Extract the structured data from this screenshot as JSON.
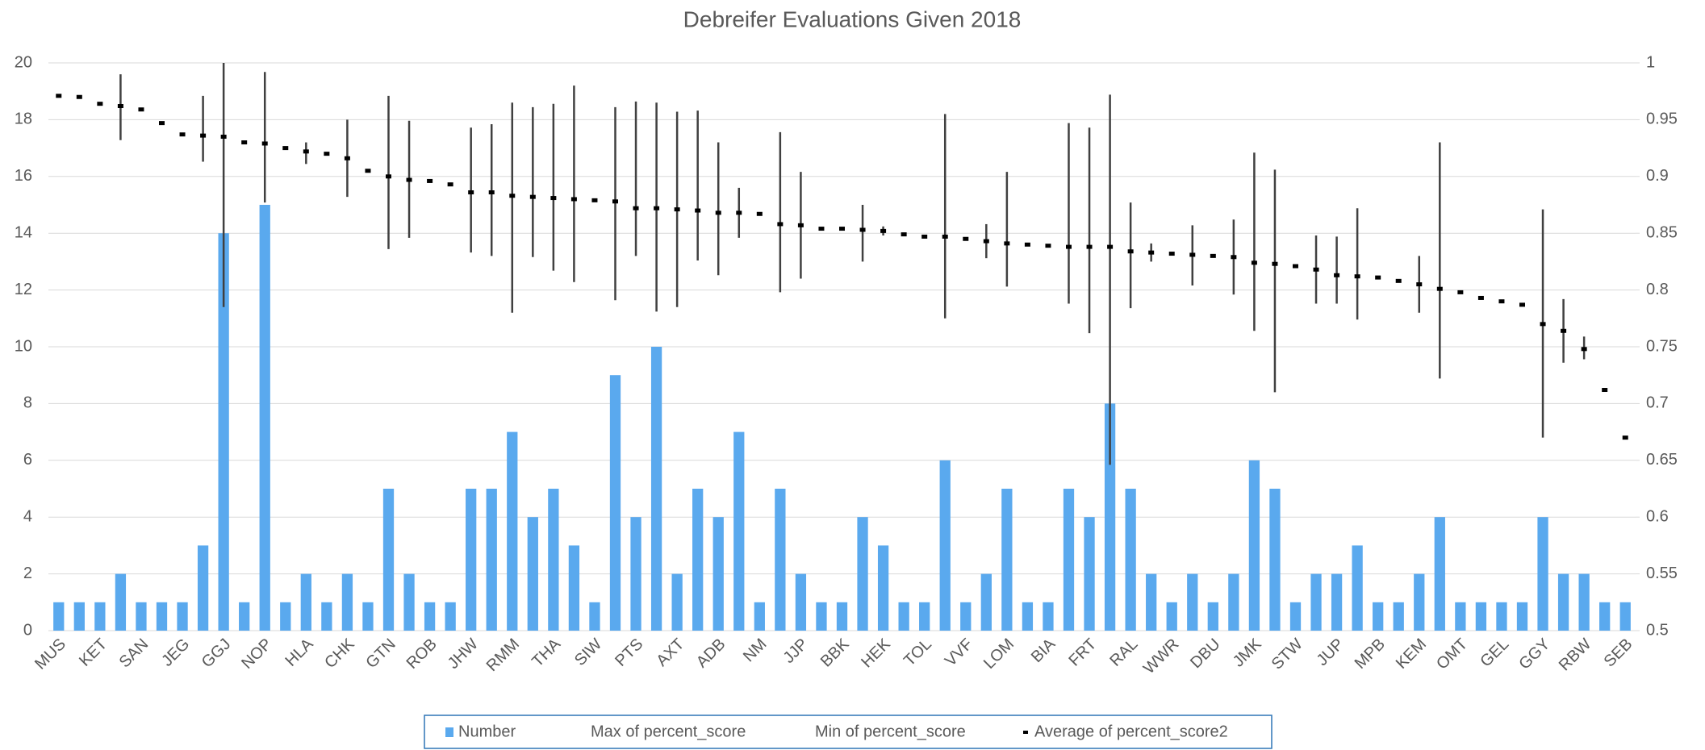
{
  "chart_data": {
    "type": "bar_highlow",
    "title": "Debreifer Evaluations Given 2018",
    "categories": [
      "MUS",
      null,
      "KET",
      null,
      "SAN",
      null,
      "JEG",
      null,
      "GGJ",
      null,
      "NOP",
      null,
      "HLA",
      null,
      "CHK",
      null,
      "GTN",
      null,
      "ROB",
      null,
      "JHW",
      null,
      "RMM",
      null,
      "THA",
      null,
      "SIW",
      null,
      "PTS",
      null,
      "AXT",
      null,
      "ADB",
      null,
      "NM",
      null,
      "JJP",
      null,
      "BBK",
      null,
      "HEK",
      null,
      "TOL",
      null,
      "VVF",
      null,
      "LOM",
      null,
      "BIA",
      null,
      "FRT",
      null,
      "RAL",
      null,
      "WWR",
      null,
      "DBU",
      null,
      "JMK",
      null,
      "STW",
      null,
      "JUP",
      null,
      "MPB",
      null,
      "KEM",
      null,
      "OMT",
      null,
      "GEL",
      null,
      "GGY",
      null,
      "RBW",
      null,
      "SEB"
    ],
    "series": [
      {
        "name": "Number",
        "color": "#5aa9ee",
        "values": [
          1,
          1,
          1,
          2,
          1,
          1,
          1,
          3,
          14,
          1,
          15,
          1,
          2,
          1,
          2,
          1,
          5,
          2,
          1,
          1,
          5,
          5,
          7,
          4,
          5,
          3,
          1,
          9,
          4,
          10,
          2,
          5,
          4,
          7,
          1,
          5,
          2,
          1,
          1,
          4,
          3,
          1,
          1,
          6,
          1,
          2,
          5,
          1,
          1,
          5,
          4,
          8,
          5,
          2,
          1,
          2,
          1,
          2,
          6,
          5,
          1,
          2,
          2,
          3,
          1,
          1,
          2,
          4,
          1,
          1,
          1,
          1,
          4,
          2,
          2,
          1,
          1
        ]
      },
      {
        "name": "Max of percent_score",
        "color": "#404040",
        "axis": "y2",
        "values": [
          null,
          null,
          null,
          0.99,
          null,
          null,
          null,
          0.971,
          1.0,
          null,
          0.992,
          null,
          0.93,
          null,
          0.95,
          null,
          0.971,
          0.949,
          null,
          null,
          0.943,
          0.946,
          0.965,
          0.961,
          0.964,
          0.98,
          null,
          0.961,
          0.966,
          0.965,
          0.957,
          0.958,
          0.93,
          0.89,
          null,
          0.939,
          0.904,
          null,
          null,
          0.875,
          0.856,
          null,
          null,
          0.955,
          null,
          0.858,
          0.904,
          null,
          null,
          0.947,
          0.943,
          0.972,
          0.877,
          0.841,
          null,
          0.857,
          null,
          0.862,
          0.921,
          0.906,
          null,
          0.848,
          0.847,
          0.872,
          null,
          null,
          0.83,
          0.93,
          null,
          null,
          null,
          null,
          0.871,
          0.792,
          0.759,
          null,
          null
        ]
      },
      {
        "name": "Min of percent_score",
        "color": "#404040",
        "axis": "y2",
        "values": [
          null,
          null,
          null,
          0.932,
          null,
          null,
          null,
          0.913,
          0.785,
          null,
          0.877,
          null,
          0.911,
          null,
          0.882,
          null,
          0.836,
          0.846,
          null,
          null,
          0.833,
          0.83,
          0.78,
          0.829,
          0.817,
          0.807,
          null,
          0.791,
          0.83,
          0.781,
          0.785,
          0.826,
          0.813,
          0.846,
          null,
          0.798,
          0.81,
          null,
          null,
          0.825,
          0.848,
          null,
          null,
          0.775,
          null,
          0.828,
          0.803,
          null,
          null,
          0.788,
          0.762,
          0.646,
          0.784,
          0.825,
          null,
          0.804,
          null,
          0.796,
          0.764,
          0.71,
          null,
          0.788,
          0.788,
          0.774,
          null,
          null,
          0.78,
          0.722,
          null,
          null,
          null,
          null,
          0.67,
          0.736,
          0.739,
          null,
          null
        ]
      },
      {
        "name": "Average of percent_score2",
        "color": "#000000",
        "axis": "y2",
        "values": [
          0.971,
          0.97,
          0.964,
          0.962,
          0.959,
          0.947,
          0.937,
          0.936,
          0.935,
          0.93,
          0.929,
          0.925,
          0.922,
          0.92,
          0.916,
          0.905,
          0.9,
          0.897,
          0.896,
          0.893,
          0.886,
          0.886,
          0.883,
          0.882,
          0.881,
          0.88,
          0.879,
          0.878,
          0.872,
          0.872,
          0.871,
          0.87,
          0.868,
          0.868,
          0.867,
          0.858,
          0.857,
          0.854,
          0.854,
          0.853,
          0.852,
          0.849,
          0.847,
          0.847,
          0.845,
          0.843,
          0.841,
          0.84,
          0.839,
          0.838,
          0.838,
          0.838,
          0.834,
          0.833,
          0.832,
          0.831,
          0.83,
          0.829,
          0.824,
          0.823,
          0.821,
          0.818,
          0.813,
          0.812,
          0.811,
          0.808,
          0.805,
          0.801,
          0.798,
          0.793,
          0.79,
          0.787,
          0.77,
          0.764,
          0.748,
          0.712,
          0.67
        ]
      }
    ],
    "ylim": [
      0,
      20
    ],
    "yticks": [
      0,
      2,
      4,
      6,
      8,
      10,
      12,
      14,
      16,
      18,
      20
    ],
    "y2lim": [
      0.5,
      1
    ],
    "y2ticks": [
      0.5,
      0.55,
      0.6,
      0.65,
      0.7,
      0.75,
      0.8,
      0.85,
      0.9,
      0.95,
      1
    ],
    "grid": true,
    "legend": "bottom"
  }
}
